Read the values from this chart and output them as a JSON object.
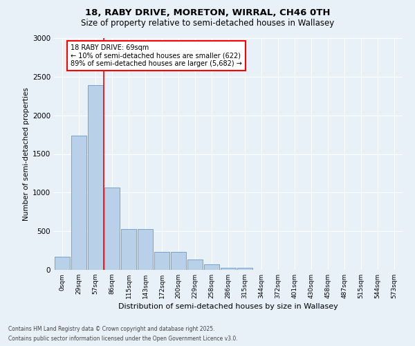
{
  "title1": "18, RABY DRIVE, MORETON, WIRRAL, CH46 0TH",
  "title2": "Size of property relative to semi-detached houses in Wallasey",
  "xlabel": "Distribution of semi-detached houses by size in Wallasey",
  "ylabel": "Number of semi-detached properties",
  "bin_labels": [
    "0sqm",
    "29sqm",
    "57sqm",
    "86sqm",
    "115sqm",
    "143sqm",
    "172sqm",
    "200sqm",
    "229sqm",
    "258sqm",
    "286sqm",
    "315sqm",
    "344sqm",
    "372sqm",
    "401sqm",
    "430sqm",
    "458sqm",
    "487sqm",
    "515sqm",
    "544sqm",
    "573sqm"
  ],
  "bar_values": [
    170,
    1740,
    2390,
    1070,
    530,
    530,
    230,
    230,
    130,
    70,
    30,
    30,
    0,
    0,
    0,
    0,
    0,
    0,
    0,
    0,
    0
  ],
  "bar_color": "#b8d0e8",
  "bar_edge_color": "#6699cc",
  "red_line_x": 2.5,
  "annotation_title": "18 RABY DRIVE: 69sqm",
  "annotation_line1": "← 10% of semi-detached houses are smaller (622)",
  "annotation_line2": "89% of semi-detached houses are larger (5,682) →",
  "ylim": [
    0,
    3000
  ],
  "yticks": [
    0,
    500,
    1000,
    1500,
    2000,
    2500,
    3000
  ],
  "footer1": "Contains HM Land Registry data © Crown copyright and database right 2025.",
  "footer2": "Contains public sector information licensed under the Open Government Licence v3.0.",
  "bg_color": "#e8f0f8",
  "grid_color": "#ffffff"
}
